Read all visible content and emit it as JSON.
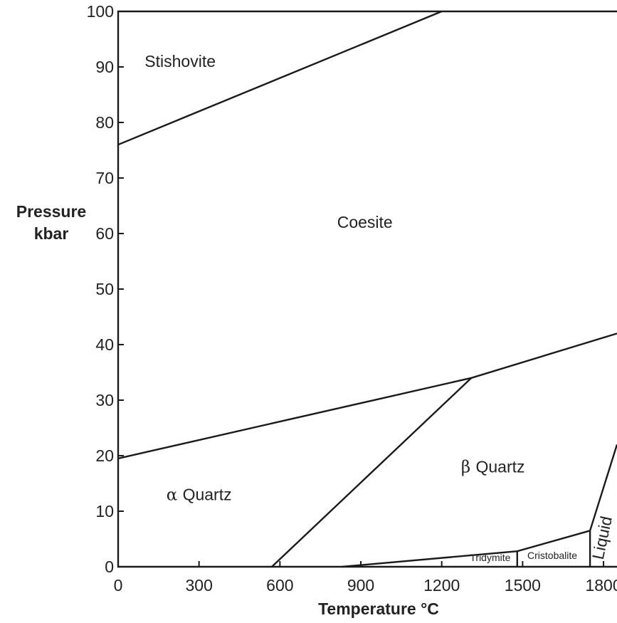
{
  "chart_data": {
    "type": "line",
    "title": "",
    "xlabel": "Temperature °C",
    "ylabel_lines": [
      "Pressure",
      "kbar"
    ],
    "xlim": [
      0,
      1850
    ],
    "ylim": [
      0,
      100
    ],
    "x_ticks": [
      0,
      300,
      600,
      900,
      1200,
      1500,
      1800
    ],
    "y_ticks": [
      0,
      10,
      20,
      30,
      40,
      50,
      60,
      70,
      80,
      90,
      100
    ],
    "x_tick_labels": [
      "0",
      "300",
      "600",
      "900",
      "1200",
      "1500",
      "1800"
    ],
    "y_tick_labels": [
      "0",
      "10",
      "20",
      "30",
      "40",
      "50",
      "60",
      "70",
      "80",
      "90",
      "100"
    ],
    "grid": false,
    "phase_boundaries": [
      {
        "between": "Stishovite–Coesite",
        "x": [
          0,
          1200
        ],
        "y": [
          76,
          100
        ]
      },
      {
        "between": "Coesite–Quartz",
        "x": [
          0,
          1310,
          1850
        ],
        "y": [
          19.5,
          34,
          42
        ]
      },
      {
        "between": "α Quartz–β Quartz",
        "x": [
          570,
          1310
        ],
        "y": [
          0,
          34
        ]
      },
      {
        "between": "β Quartz–Tridymite/Cristobalite",
        "x": [
          830,
          1480,
          1750
        ],
        "y": [
          0,
          2.8,
          6.5
        ]
      },
      {
        "between": "Tridymite–Cristobalite",
        "x": [
          1480,
          1480
        ],
        "y": [
          0,
          2.8
        ]
      },
      {
        "between": "Cristobalite–Liquid",
        "x": [
          1750,
          1750
        ],
        "y": [
          0,
          6.5
        ]
      },
      {
        "between": "Solid–Liquid",
        "x": [
          1750,
          1850
        ],
        "y": [
          6.5,
          22
        ]
      }
    ],
    "regions": [
      {
        "label": "Stishovite",
        "x": 230,
        "y": 90
      },
      {
        "label": "Coesite",
        "x": 915,
        "y": 61
      },
      {
        "label": "Quartz",
        "greek": "β",
        "x": 1390,
        "y": 17
      },
      {
        "label": "Quartz",
        "greek": "α",
        "x": 300,
        "y": 12
      },
      {
        "label": "Tridymite",
        "x": 1380,
        "y": 1
      },
      {
        "label": "Cristobalite",
        "x": 1610,
        "y": 1.4
      },
      {
        "label": "Liquid",
        "x": 1815,
        "y": 5,
        "rotated": true
      }
    ]
  }
}
